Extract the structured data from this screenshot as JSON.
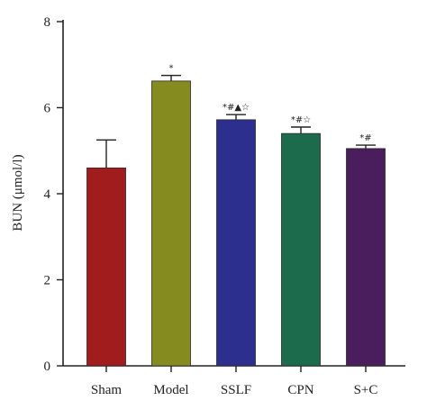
{
  "chart_data": {
    "type": "bar",
    "ylabel": "BUN (μmol/l)",
    "ylim": [
      0,
      8
    ],
    "yticks": [
      0,
      2,
      4,
      6,
      8
    ],
    "grid": false,
    "categories": [
      "Sham",
      "Model",
      "SSLF",
      "CPN",
      "S+C"
    ],
    "values": [
      4.6,
      6.62,
      5.72,
      5.4,
      5.05
    ],
    "errors": [
      0.65,
      0.13,
      0.12,
      0.15,
      0.08
    ],
    "annotations": [
      "",
      "*",
      "*#▲☆",
      "*#☆",
      "*#"
    ],
    "colors": [
      "#a11c1c",
      "#868b20",
      "#2d2f8f",
      "#1b6b4c",
      "#4a1d5c"
    ]
  }
}
